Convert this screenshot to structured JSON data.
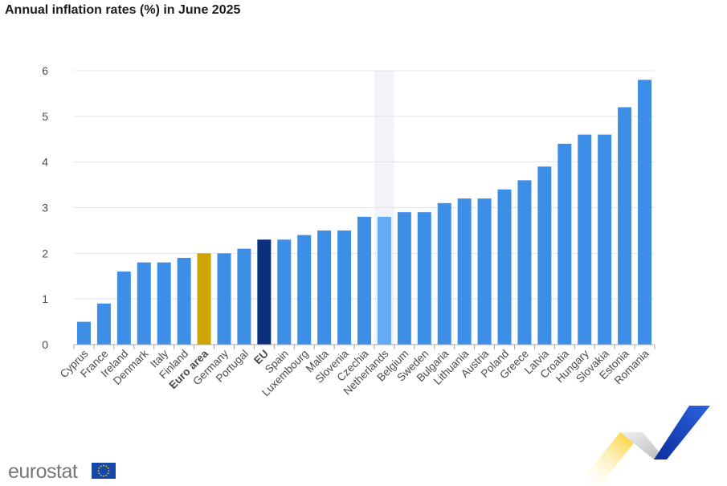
{
  "chart_data": {
    "type": "bar",
    "title": "Annual inflation rates (%) in June 2025",
    "categories": [
      "Cyprus",
      "France",
      "Ireland",
      "Denmark",
      "Italy",
      "Finland",
      "Euro area",
      "Germany",
      "Portugal",
      "EU",
      "Spain",
      "Luxembourg",
      "Malta",
      "Slovenia",
      "Czechia",
      "Netherlands",
      "Belgium",
      "Sweden",
      "Bulgaria",
      "Lithuania",
      "Austria",
      "Poland",
      "Greece",
      "Latvia",
      "Croatia",
      "Hungary",
      "Slovakia",
      "Estonia",
      "Romania"
    ],
    "values": [
      0.5,
      0.9,
      1.6,
      1.8,
      1.8,
      1.9,
      2.0,
      2.0,
      2.1,
      2.3,
      2.3,
      2.4,
      2.5,
      2.5,
      2.8,
      2.8,
      2.9,
      2.9,
      3.1,
      3.2,
      3.2,
      3.4,
      3.6,
      3.9,
      4.4,
      4.6,
      4.6,
      5.2,
      5.8
    ],
    "ylim": [
      0,
      6
    ],
    "yticks": [
      0,
      1,
      2,
      3,
      4,
      5,
      6
    ],
    "xlabel": "",
    "ylabel": "",
    "grid": true,
    "highlighted_category": "Netherlands",
    "bold_categories": [
      "Euro area",
      "EU"
    ],
    "colors": {
      "default": "#3d8ee6",
      "euro_area": "#cea500",
      "eu": "#0b2f7c",
      "highlight_bar": "#64aaf7",
      "highlight_band": "#f3f4f9",
      "grid": "#e4e4e8",
      "axis": "#a8a8a8"
    }
  },
  "footer": {
    "logo_text": "eurostat",
    "flag_color": "#1748a8",
    "star_color": "#f5d400"
  }
}
